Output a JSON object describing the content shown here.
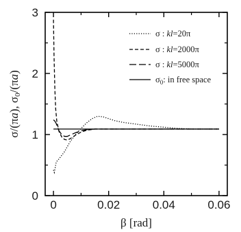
{
  "chart_data": {
    "type": "line",
    "title": "",
    "xlabel": "β [rad]",
    "ylabel": "σ/(πa),  σ0/(πa)",
    "xlim": [
      -0.003,
      0.063
    ],
    "ylim": [
      0,
      3
    ],
    "x_ticks": [
      0,
      0.02,
      0.04,
      0.06
    ],
    "x_tick_labels": [
      "0",
      "0.02",
      "0.04",
      "0.06"
    ],
    "y_ticks": [
      0,
      1,
      2,
      3
    ],
    "y_tick_labels": [
      "0",
      "1",
      "2",
      "3"
    ],
    "grid": false,
    "legend_position": "top-right",
    "series": [
      {
        "name": "σ : kl=20π",
        "line_style": "dotted",
        "x": [
          0,
          0.0003,
          0.0006,
          0.001,
          0.002,
          0.004,
          0.006,
          0.008,
          0.01,
          0.012,
          0.014,
          0.016,
          0.018,
          0.02,
          0.022,
          0.025,
          0.03,
          0.035,
          0.04,
          0.045,
          0.05,
          0.055,
          0.06
        ],
        "y": [
          0.42,
          0.38,
          0.45,
          0.55,
          0.6,
          0.72,
          0.88,
          1.0,
          1.1,
          1.19,
          1.26,
          1.3,
          1.29,
          1.26,
          1.23,
          1.2,
          1.17,
          1.14,
          1.12,
          1.1,
          1.09,
          1.09,
          1.09
        ]
      },
      {
        "name": "σ : kl=2000π",
        "line_style": "dashed",
        "x": [
          0,
          0.0002,
          0.0005,
          0.0008,
          0.0012,
          0.002,
          0.003,
          0.004,
          0.005,
          0.006,
          0.008,
          0.01,
          0.012,
          0.015,
          0.02,
          0.03,
          0.04,
          0.05,
          0.06
        ],
        "y": [
          2.88,
          2.3,
          1.75,
          1.42,
          1.22,
          1.05,
          0.96,
          0.92,
          0.91,
          0.93,
          0.99,
          1.04,
          1.07,
          1.09,
          1.09,
          1.09,
          1.09,
          1.09,
          1.09
        ]
      },
      {
        "name": "σ : kl=5000π",
        "line_style": "long-dashed",
        "x": [
          0,
          0.0005,
          0.001,
          0.0015,
          0.002,
          0.003,
          0.004,
          0.005,
          0.006,
          0.008,
          0.01,
          0.012,
          0.015,
          0.02,
          0.03,
          0.04,
          0.05,
          0.06
        ],
        "y": [
          1.24,
          1.22,
          1.18,
          1.12,
          1.06,
          1.0,
          0.97,
          0.97,
          0.99,
          1.03,
          1.06,
          1.08,
          1.09,
          1.09,
          1.09,
          1.09,
          1.09,
          1.09
        ]
      },
      {
        "name": "σ0:  in free space",
        "line_style": "solid",
        "x": [
          0,
          0.06
        ],
        "y": [
          1.09,
          1.09
        ]
      }
    ]
  }
}
